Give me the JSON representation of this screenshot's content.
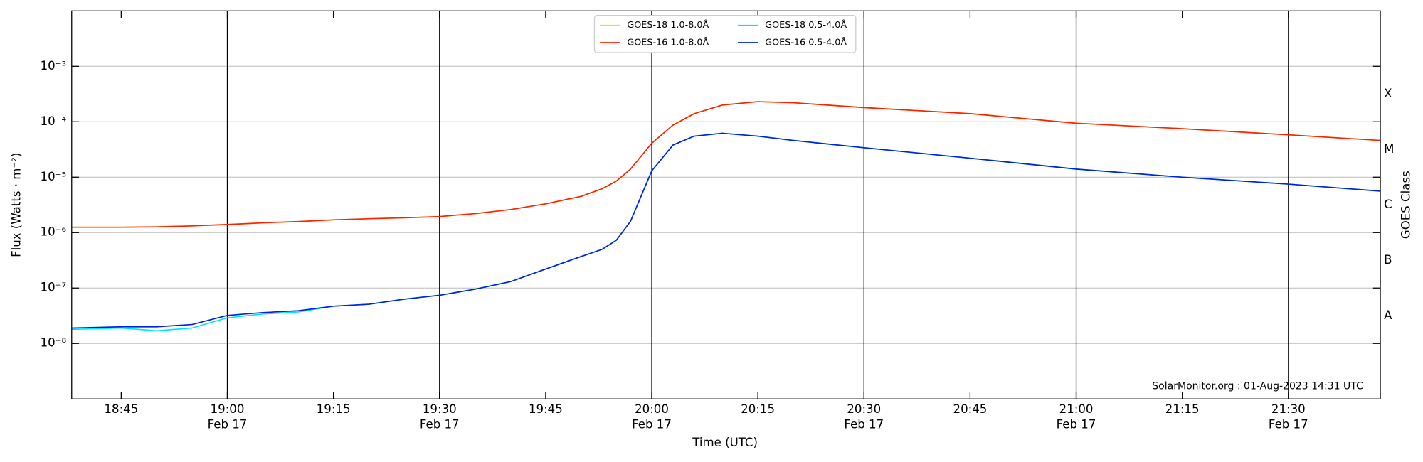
{
  "chart_data": {
    "type": "line",
    "xlabel": "Time (UTC)",
    "ylabel": "Flux (Watts · m⁻²)",
    "y2label": "GOES Class",
    "annotation": "SolarMonitor.org : 01-Aug-2023 14:31 UTC",
    "log_y": true,
    "grid": true,
    "legend": "top-center",
    "x": [
      "Feb 17 18:38",
      "Feb 17 18:45",
      "Feb 17 18:50",
      "Feb 17 18:55",
      "Feb 17 19:00",
      "Feb 17 19:05",
      "Feb 17 19:10",
      "Feb 17 19:15",
      "Feb 17 19:20",
      "Feb 17 19:25",
      "Feb 17 19:30",
      "Feb 17 19:35",
      "Feb 17 19:40",
      "Feb 17 19:45",
      "Feb 17 19:50",
      "Feb 17 19:53",
      "Feb 17 19:55",
      "Feb 17 19:57",
      "Feb 17 20:00",
      "Feb 17 20:03",
      "Feb 17 20:06",
      "Feb 17 20:10",
      "Feb 17 20:15",
      "Feb 17 20:20",
      "Feb 17 20:30",
      "Feb 17 20:45",
      "Feb 17 21:00",
      "Feb 17 21:15",
      "Feb 17 21:30",
      "Feb 17 21:43"
    ],
    "xlim": [
      "Feb 17 18:38",
      "Feb 17 21:43"
    ],
    "xticks": [
      {
        "value": "Feb 17 18:45",
        "label": "18:45"
      },
      {
        "value": "Feb 17 19:00",
        "label": "19:00",
        "date": "Feb 17"
      },
      {
        "value": "Feb 17 19:15",
        "label": "19:15"
      },
      {
        "value": "Feb 17 19:30",
        "label": "19:30",
        "date": "Feb 17"
      },
      {
        "value": "Feb 17 19:45",
        "label": "19:45"
      },
      {
        "value": "Feb 17 20:00",
        "label": "20:00",
        "date": "Feb 17"
      },
      {
        "value": "Feb 17 20:15",
        "label": "20:15"
      },
      {
        "value": "Feb 17 20:30",
        "label": "20:30",
        "date": "Feb 17"
      },
      {
        "value": "Feb 17 20:45",
        "label": "20:45"
      },
      {
        "value": "Feb 17 21:00",
        "label": "21:00",
        "date": "Feb 17"
      },
      {
        "value": "Feb 17 21:15",
        "label": "21:15"
      },
      {
        "value": "Feb 17 21:30",
        "label": "21:30",
        "date": "Feb 17"
      }
    ],
    "ylim": [
      1e-09,
      0.01
    ],
    "yticks": [
      {
        "value": 1e-08,
        "label": "10⁻⁸"
      },
      {
        "value": 1e-07,
        "label": "10⁻⁷"
      },
      {
        "value": 1e-06,
        "label": "10⁻⁶"
      },
      {
        "value": 1e-05,
        "label": "10⁻⁵"
      },
      {
        "value": 0.0001,
        "label": "10⁻⁴"
      },
      {
        "value": 0.001,
        "label": "10⁻³"
      }
    ],
    "y2lim": [
      1e-09,
      0.01
    ],
    "y2ticks": [
      {
        "value": 3.16e-08,
        "label": "A"
      },
      {
        "value": 3.16e-07,
        "label": "B"
      },
      {
        "value": 3.16e-06,
        "label": "C"
      },
      {
        "value": 3.16e-05,
        "label": "M"
      },
      {
        "value": 0.000316,
        "label": "X"
      }
    ],
    "series": [
      {
        "name": "GOES-18 1.0-8.0Å",
        "color": "#ffd700",
        "values": [
          1.25e-06,
          1.25e-06,
          1.27e-06,
          1.32e-06,
          1.4e-06,
          1.5e-06,
          1.58e-06,
          1.7e-06,
          1.78e-06,
          1.85e-06,
          1.95e-06,
          2.2e-06,
          2.6e-06,
          3.3e-06,
          4.5e-06,
          6.2e-06,
          8.5e-06,
          1.4e-05,
          4.1e-05,
          8.7e-05,
          0.00014,
          0.0002,
          0.00023,
          0.00022,
          0.00018,
          0.00014,
          9.4e-05,
          7.5e-05,
          5.8e-05,
          4.6e-05
        ]
      },
      {
        "name": "GOES-16 1.0-8.0Å",
        "color": "#ff2000",
        "values": [
          1.25e-06,
          1.25e-06,
          1.27e-06,
          1.32e-06,
          1.4e-06,
          1.5e-06,
          1.58e-06,
          1.7e-06,
          1.78e-06,
          1.85e-06,
          1.95e-06,
          2.2e-06,
          2.6e-06,
          3.3e-06,
          4.5e-06,
          6.2e-06,
          8.5e-06,
          1.4e-05,
          4.1e-05,
          8.7e-05,
          0.00014,
          0.0002,
          0.00023,
          0.00022,
          0.00018,
          0.00014,
          9.4e-05,
          7.5e-05,
          5.8e-05,
          4.6e-05
        ]
      },
      {
        "name": "GOES-18 0.5-4.0Å",
        "color": "#00e5ff",
        "values": [
          1.8e-08,
          1.9e-08,
          1.7e-08,
          1.9e-08,
          2.9e-08,
          3.4e-08,
          3.7e-08,
          4.7e-08,
          5.1e-08,
          6.3e-08,
          7.4e-08,
          9.5e-08,
          1.3e-07,
          2.2e-07,
          3.7e-07,
          5e-07,
          7.3e-07,
          1.6e-06,
          1.3e-05,
          3.8e-05,
          5.5e-05,
          6.2e-05,
          5.5e-05,
          4.6e-05,
          3.4e-05,
          2.2e-05,
          1.4e-05,
          1e-05,
          7.5e-06,
          5.6e-06
        ]
      },
      {
        "name": "GOES-16 0.5-4.0Å",
        "color": "#0022dd",
        "values": [
          1.9e-08,
          2e-08,
          2e-08,
          2.2e-08,
          3.2e-08,
          3.6e-08,
          3.9e-08,
          4.7e-08,
          5.1e-08,
          6.3e-08,
          7.4e-08,
          9.5e-08,
          1.3e-07,
          2.2e-07,
          3.7e-07,
          5e-07,
          7.3e-07,
          1.6e-06,
          1.3e-05,
          3.8e-05,
          5.5e-05,
          6.2e-05,
          5.5e-05,
          4.6e-05,
          3.4e-05,
          2.2e-05,
          1.4e-05,
          1e-05,
          7.5e-06,
          5.6e-06
        ]
      }
    ]
  }
}
